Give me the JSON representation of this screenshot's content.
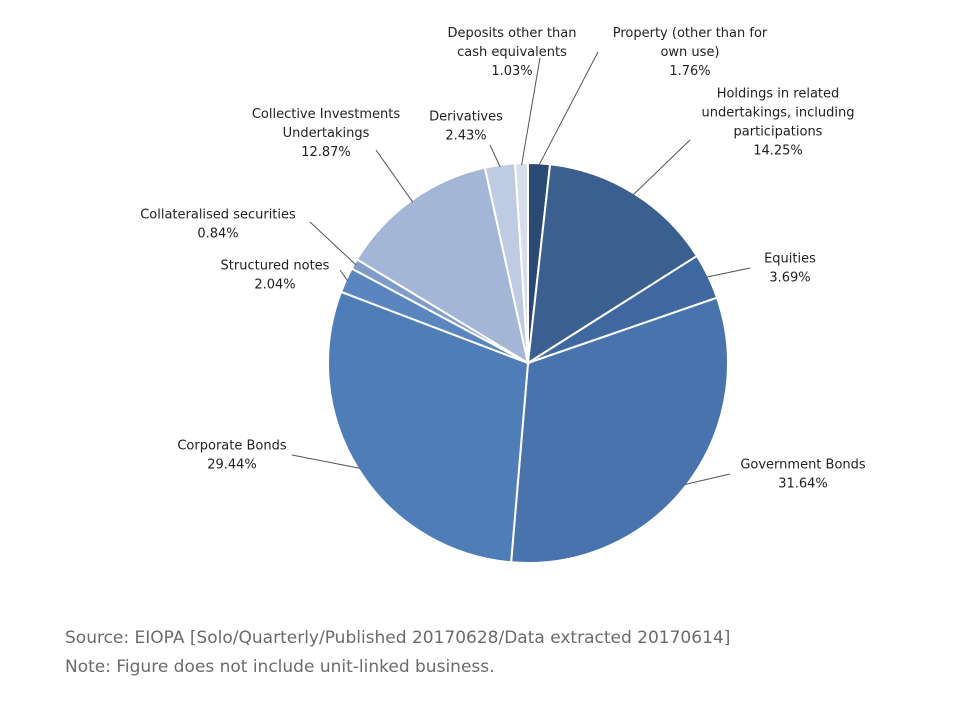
{
  "chart_data": {
    "type": "pie",
    "slices": [
      {
        "name": "Property (other than for own use)",
        "value": 1.76,
        "label_lines": [
          "Property (other than for",
          "own use)"
        ],
        "value_label": "1.76%",
        "color": "#2b4a73"
      },
      {
        "name": "Holdings in related undertakings, including participations",
        "value": 14.25,
        "label_lines": [
          "Holdings in related",
          "undertakings, including",
          "participations"
        ],
        "value_label": "14.25%",
        "color": "#3b5f8f"
      },
      {
        "name": "Equities",
        "value": 3.69,
        "label_lines": [
          "Equities"
        ],
        "value_label": "3.69%",
        "color": "#3f68a0"
      },
      {
        "name": "Government Bonds",
        "value": 31.64,
        "label_lines": [
          "Government Bonds"
        ],
        "value_label": "31.64%",
        "color": "#4873ac"
      },
      {
        "name": "Corporate Bonds",
        "value": 29.44,
        "label_lines": [
          "Corporate Bonds"
        ],
        "value_label": "29.44%",
        "color": "#4f7db8"
      },
      {
        "name": "Structured notes",
        "value": 2.04,
        "label_lines": [
          "Structured notes"
        ],
        "value_label": "2.04%",
        "color": "#5a86c0"
      },
      {
        "name": "Collateralised securities",
        "value": 0.84,
        "label_lines": [
          "Collateralised securities"
        ],
        "value_label": "0.84%",
        "color": "#7e9cc9"
      },
      {
        "name": "Collective Investments Undertakings",
        "value": 12.87,
        "label_lines": [
          "Collective Investments",
          "Undertakings"
        ],
        "value_label": "12.87%",
        "color": "#a3b6d8"
      },
      {
        "name": "Derivatives",
        "value": 2.43,
        "label_lines": [
          "Derivatives"
        ],
        "value_label": "2.43%",
        "color": "#bfcbe3"
      },
      {
        "name": "Deposits other than cash equivalents",
        "value": 1.03,
        "label_lines": [
          "Deposits other than",
          "cash equivalents"
        ],
        "value_label": "1.03%",
        "color": "#d6deed"
      }
    ]
  },
  "footnotes": {
    "source": "Source: EIOPA [Solo/Quarterly/Published 20170628/Data extracted 20170614]",
    "note": "Note: Figure does not include unit-linked business."
  }
}
